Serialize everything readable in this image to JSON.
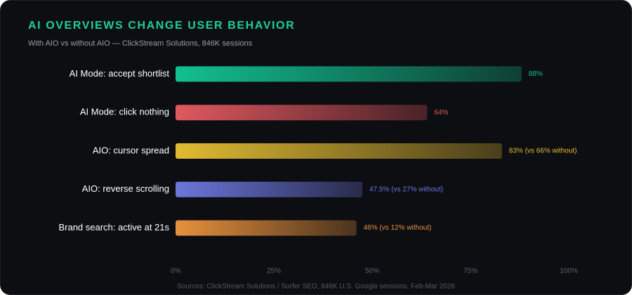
{
  "chart_data": {
    "type": "bar",
    "orientation": "horizontal",
    "title": "AI OVERVIEWS CHANGE USER BEHAVIOR",
    "subtitle": "With AIO vs without AIO — ClickStream Solutions, 846K sessions",
    "source": "Sources: ClickStream Solutions / Surfer SEO, 846K U.S. Google sessions, Feb-Mar 2026",
    "categories": [
      "AI Mode: accept shortlist",
      "AI Mode: click nothing",
      "AIO: cursor spread",
      "AIO: reverse scrolling",
      "Brand search: active at 21s"
    ],
    "values": [
      88,
      64,
      83,
      47.5,
      46
    ],
    "value_labels": [
      "88%",
      "64%",
      "83% (vs 66% without)",
      "47.5% (vs 27% without)",
      "46% (vs 12% without)"
    ],
    "colors": [
      "#12c08f",
      "#e0585f",
      "#e2bb32",
      "#6c76dc",
      "#e8913d"
    ],
    "xlim": [
      0,
      100
    ],
    "xticks": [
      {
        "value": 0,
        "label": "0%"
      },
      {
        "value": 25,
        "label": "25%"
      },
      {
        "value": 50,
        "label": "50%"
      },
      {
        "value": 75,
        "label": "75%"
      },
      {
        "value": 100,
        "label": "100%"
      }
    ]
  }
}
